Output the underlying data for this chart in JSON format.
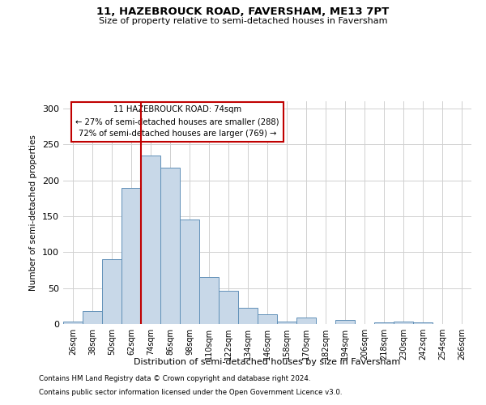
{
  "title1": "11, HAZEBROUCK ROAD, FAVERSHAM, ME13 7PT",
  "title2": "Size of property relative to semi-detached houses in Faversham",
  "xlabel": "Distribution of semi-detached houses by size in Faversham",
  "ylabel": "Number of semi-detached properties",
  "categories": [
    "26sqm",
    "38sqm",
    "50sqm",
    "62sqm",
    "74sqm",
    "86sqm",
    "98sqm",
    "110sqm",
    "122sqm",
    "134sqm",
    "146sqm",
    "158sqm",
    "170sqm",
    "182sqm",
    "194sqm",
    "206sqm",
    "218sqm",
    "230sqm",
    "242sqm",
    "254sqm",
    "266sqm"
  ],
  "values": [
    3,
    18,
    90,
    189,
    235,
    218,
    145,
    65,
    46,
    23,
    13,
    3,
    9,
    0,
    6,
    0,
    2,
    3,
    2,
    0,
    0
  ],
  "bar_color": "#c8d8e8",
  "bar_edge_color": "#6090b8",
  "vline_color": "#c00000",
  "vline_index": 4,
  "annotation_title": "11 HAZEBROUCK ROAD: 74sqm",
  "annotation_line1": "← 27% of semi-detached houses are smaller (288)",
  "annotation_line2": "72% of semi-detached houses are larger (769) →",
  "annotation_box_color": "#ffffff",
  "annotation_box_edge_color": "#c00000",
  "footer1": "Contains HM Land Registry data © Crown copyright and database right 2024.",
  "footer2": "Contains public sector information licensed under the Open Government Licence v3.0.",
  "ylim": [
    0,
    310
  ],
  "yticks": [
    0,
    50,
    100,
    150,
    200,
    250,
    300
  ],
  "background_color": "#ffffff",
  "grid_color": "#d0d0d0"
}
